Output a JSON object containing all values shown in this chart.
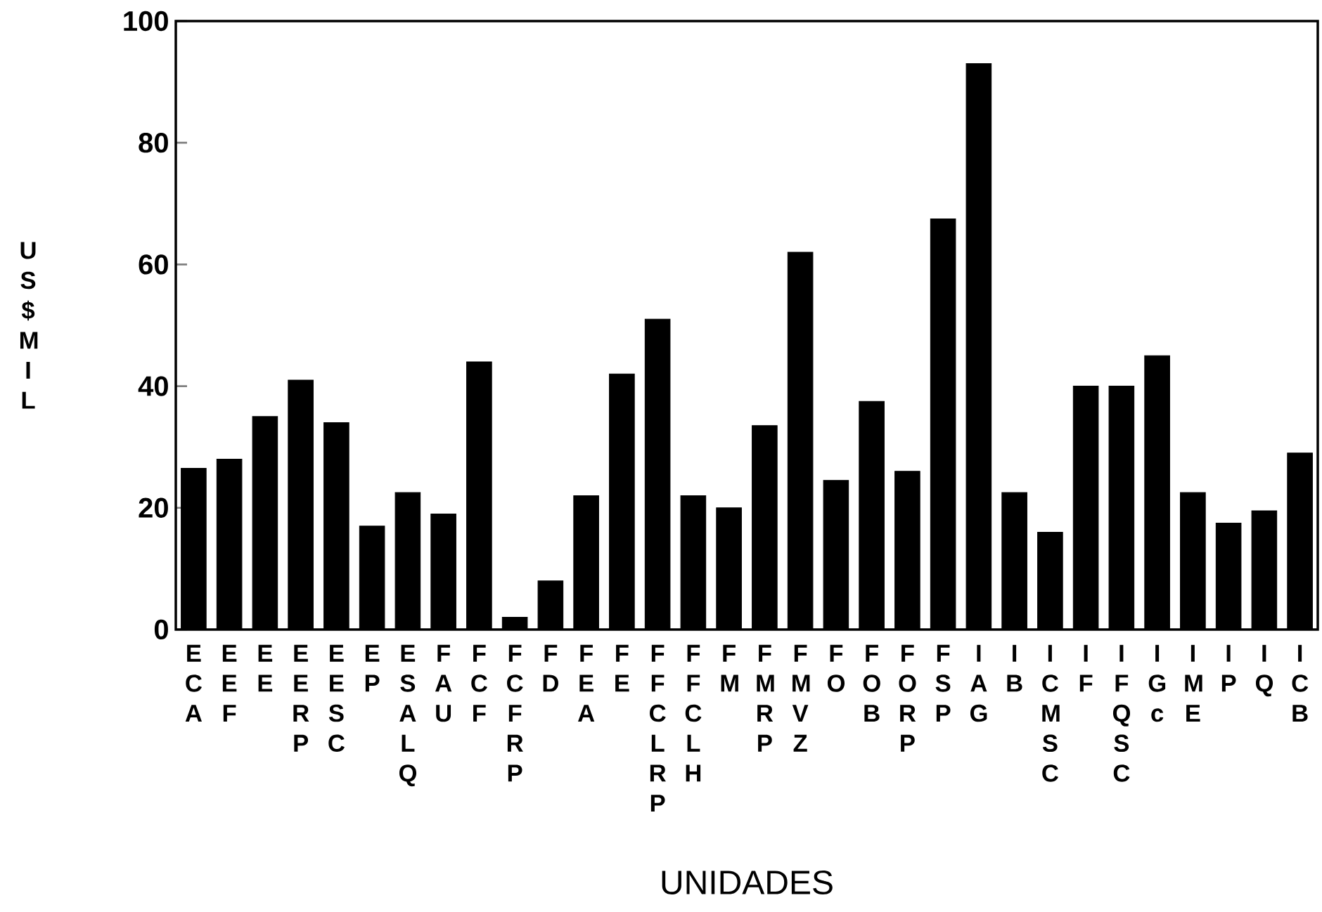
{
  "chart_data": {
    "type": "bar",
    "xlabel": "UNIDADES",
    "ylabel": "US$ MIL",
    "categories": [
      "ECA",
      "EEF",
      "EE",
      "EERP",
      "EESC",
      "EP",
      "ESALQ",
      "FAU",
      "FCF",
      "FCFRP",
      "FD",
      "FEA",
      "FE",
      "FFCLRP",
      "FFCLH",
      "FM",
      "FMRP",
      "FMVZ",
      "FO",
      "FOB",
      "FORP",
      "FSP",
      "IAG",
      "IB",
      "ICMSC",
      "IF",
      "IFQSC",
      "IGc",
      "IME",
      "IP",
      "IQ",
      "ICB"
    ],
    "values": [
      26.5,
      28,
      35,
      41,
      34,
      17,
      22.5,
      19,
      44,
      2,
      8,
      22,
      42,
      51,
      22,
      20,
      33.5,
      62,
      24.5,
      37.5,
      26,
      67.5,
      93,
      22.5,
      16,
      40,
      40,
      45,
      22.5,
      17.5,
      19.5,
      29
    ],
    "color": "#000000",
    "ylim": [
      0,
      100
    ],
    "yticks": [
      0,
      20,
      40,
      60,
      80,
      100
    ]
  }
}
